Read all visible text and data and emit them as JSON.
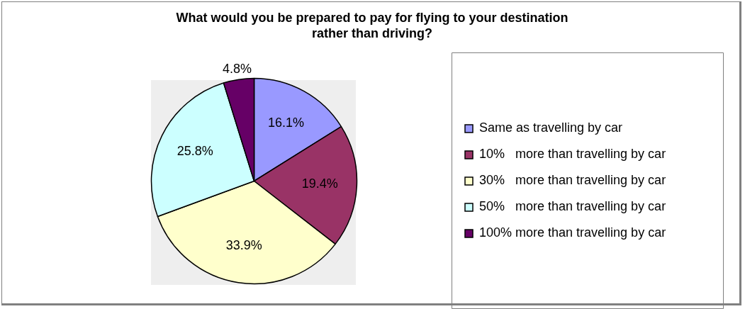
{
  "chart_data": {
    "type": "pie",
    "title": "What would you be prepared to pay for flying to your destination rather than driving?",
    "categories": [
      "Same as travelling by car",
      "10%   more than travelling by car",
      "30%   more than travelling by car",
      "50%   more than travelling by car",
      "100% more than travelling by car"
    ],
    "values": [
      16.1,
      19.4,
      33.9,
      25.8,
      4.8
    ],
    "value_labels": [
      "16.1%",
      "19.4%",
      "33.9%",
      "25.8%",
      "4.8%"
    ],
    "colors": [
      "#9999ff",
      "#993366",
      "#ffffcc",
      "#ccffff",
      "#660066"
    ],
    "legend": "right"
  }
}
